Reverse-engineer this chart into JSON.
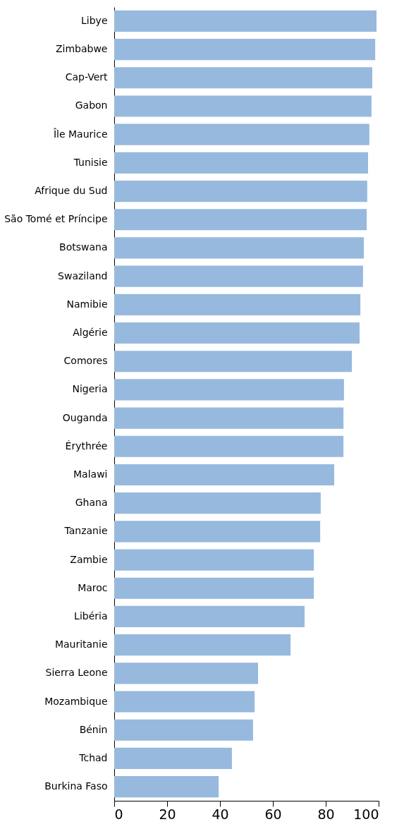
{
  "chart_data": {
    "type": "bar",
    "orientation": "horizontal",
    "categories": [
      "Libye",
      "Zimbabwe",
      "Cap-Vert",
      "Gabon",
      "Île Maurice",
      "Tunisie",
      "Afrique du Sud",
      "São Tomé et Príncipe",
      "Botswana",
      "Swaziland",
      "Namibie",
      "Algérie",
      "Comores",
      "Nigeria",
      "Ouganda",
      "Érythrée",
      "Malawi",
      "Ghana",
      "Tanzanie",
      "Zambie",
      "Maroc",
      "Libéria",
      "Mauritanie",
      "Sierra Leone",
      "Mozambique",
      "Bénin",
      "Tchad",
      "Burkina Faso"
    ],
    "series": [
      {
        "color": "#97b9de",
        "values": [
          99.2,
          98.7,
          97.6,
          97.3,
          96.5,
          96,
          95.7,
          95.5,
          94.4,
          94.1,
          93.1,
          92.8,
          89.9,
          86.9,
          86.7,
          86.7,
          83.2,
          78.1,
          77.9,
          75.5,
          75.5,
          72,
          66.7,
          54.4,
          53.1,
          52.5,
          44.5,
          39.5
        ]
      }
    ],
    "xlim": [
      0,
      100
    ],
    "xticks": [
      0,
      20,
      40,
      60,
      80,
      100
    ],
    "grid": false
  }
}
